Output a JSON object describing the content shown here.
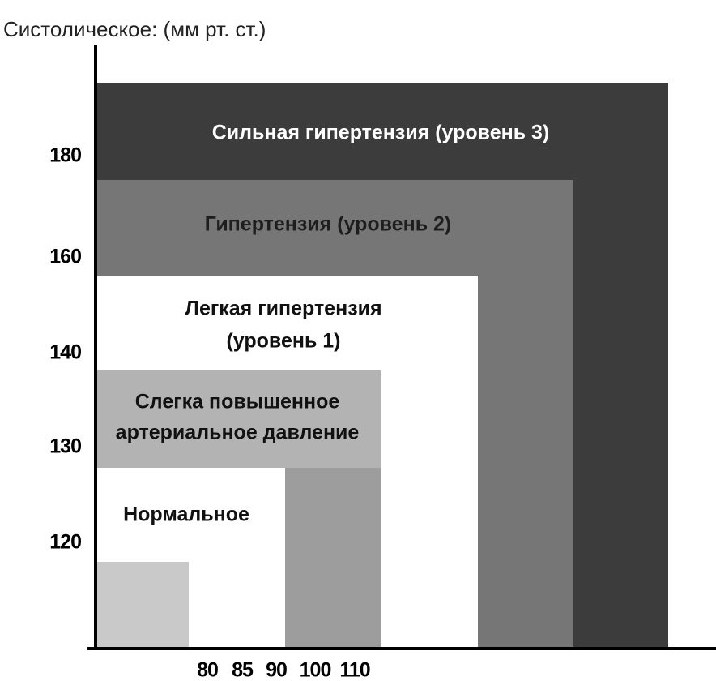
{
  "title": "Систолическое: (мм рт. ст.)",
  "y_axis": {
    "labels": [
      "180",
      "160",
      "140",
      "130",
      "120"
    ]
  },
  "x_axis": {
    "labels": [
      "80",
      "85",
      "90",
      "100",
      "110"
    ]
  },
  "zones": [
    {
      "lines": [
        "Сильная гипертензия (уровень 3)"
      ]
    },
    {
      "lines": [
        "Гипертензия (уровень 2)"
      ]
    },
    {
      "lines": [
        "Легкая гипертензия",
        "(уровень 1)"
      ]
    },
    {
      "lines": [
        "Слегка повышенное",
        "артериальное давление"
      ]
    },
    {
      "lines": [
        "Нормальное"
      ]
    }
  ]
}
